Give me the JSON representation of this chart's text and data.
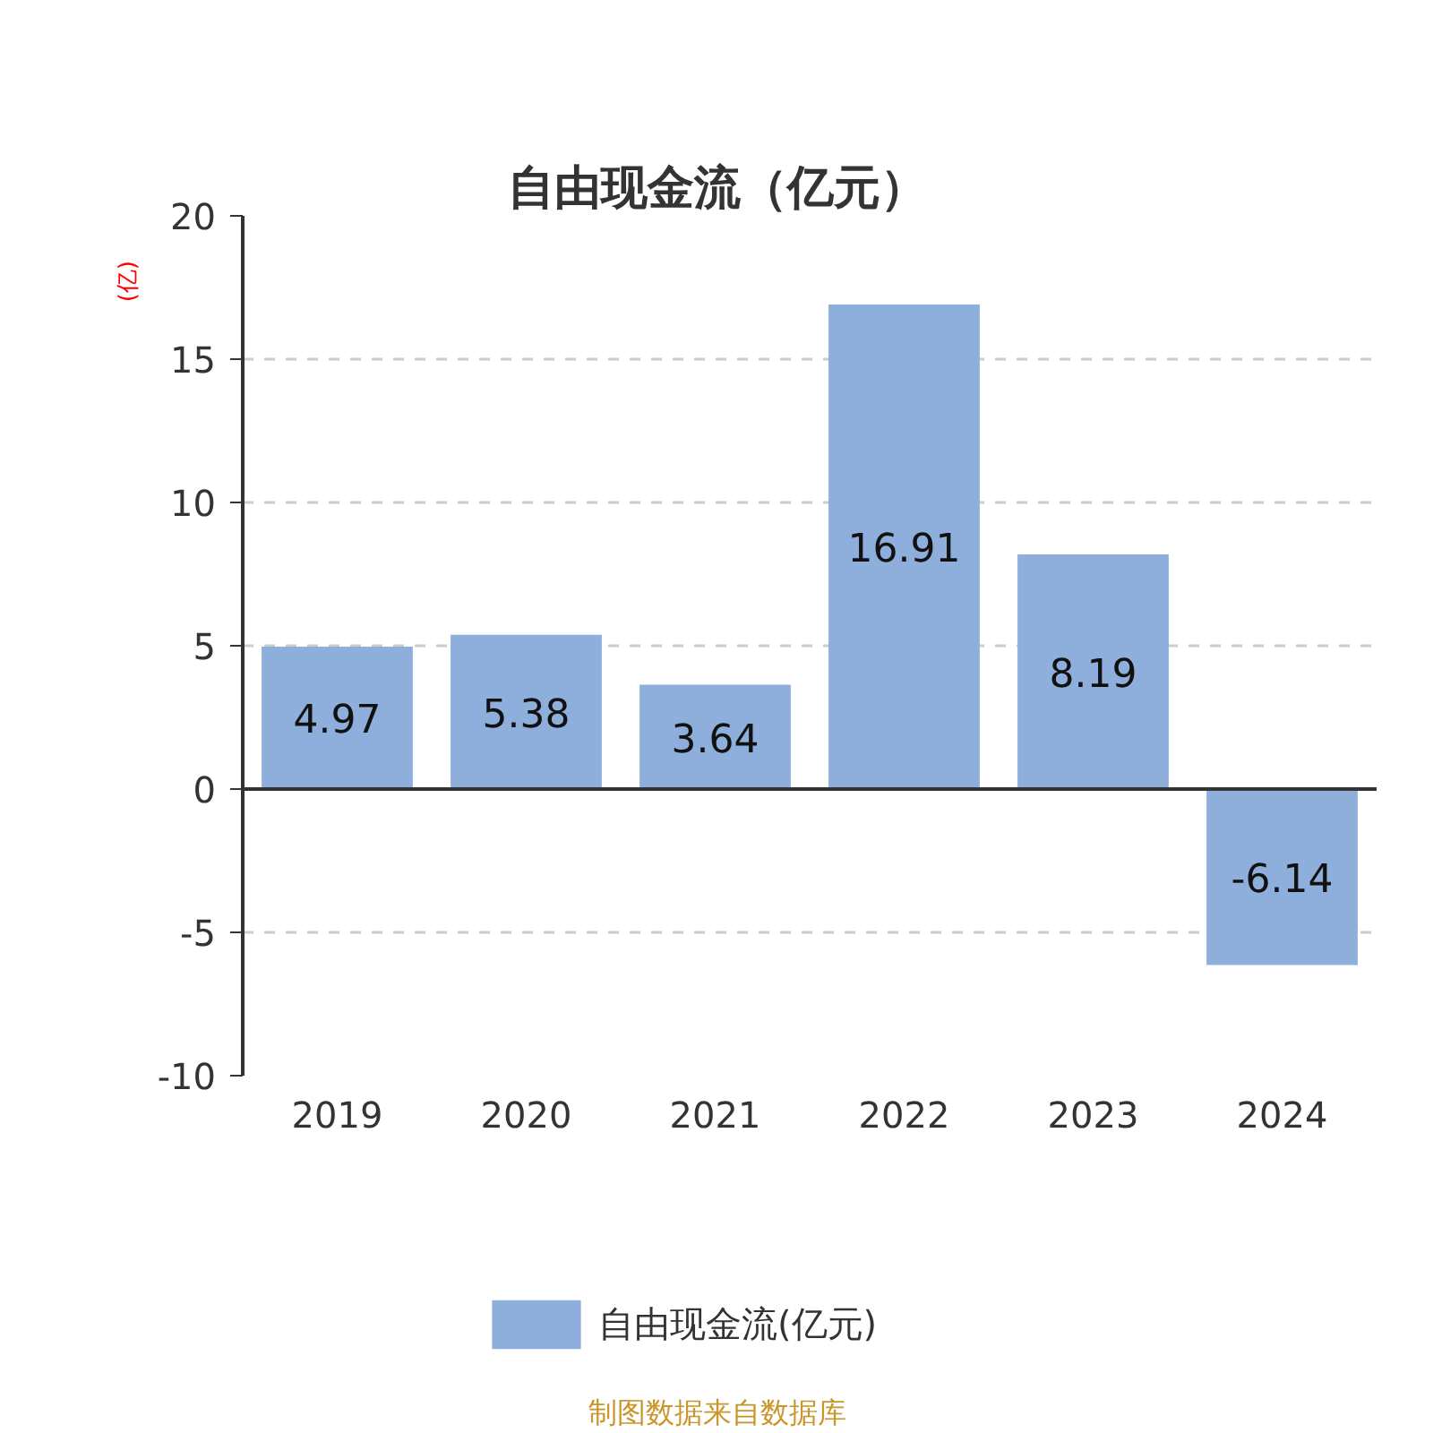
{
  "chart_data": {
    "type": "bar",
    "title": "自由现金流（亿元）",
    "ylabel": "(亿)",
    "categories": [
      "2019",
      "2020",
      "2021",
      "2022",
      "2023",
      "2024"
    ],
    "series": [
      {
        "name": "自由现金流(亿元)",
        "color": "#8eaedb",
        "values": [
          4.97,
          5.38,
          3.64,
          16.91,
          8.19,
          -6.14
        ]
      }
    ],
    "ylim": [
      -10,
      20
    ],
    "yticks": [
      -10,
      -5,
      0,
      5,
      10,
      15,
      20
    ],
    "grid": "y",
    "legend": "bottom",
    "data_labels": true,
    "annotations": [
      "制图数据来自数据库"
    ]
  }
}
